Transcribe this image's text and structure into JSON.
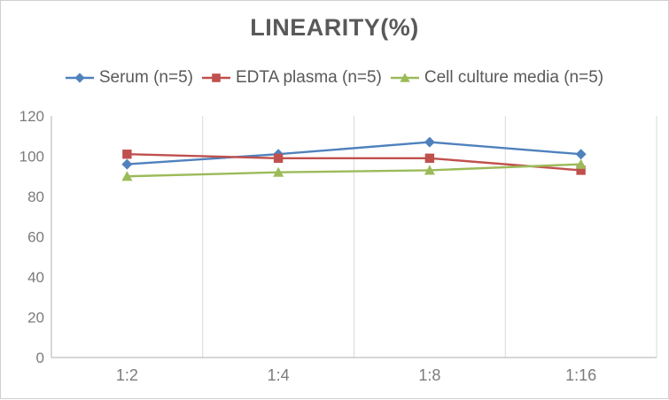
{
  "page": {
    "title": "LINEARITY(%)"
  },
  "legend": {
    "items": [
      {
        "label": "Serum (n=5)",
        "color": "#4F81BD",
        "marker": "diamond"
      },
      {
        "label": "EDTA plasma (n=5)",
        "color": "#C0504D",
        "marker": "square"
      },
      {
        "label": "Cell culture media (n=5)",
        "color": "#9BBB59",
        "marker": "triangle"
      }
    ]
  },
  "chart_data": {
    "type": "line",
    "title": "LINEARITY(%)",
    "categories": [
      "1:2",
      "1:4",
      "1:8",
      "1:16"
    ],
    "series": [
      {
        "name": "Serum (n=5)",
        "color": "#4F81BD",
        "marker": "diamond",
        "values": [
          96,
          101,
          107,
          101
        ]
      },
      {
        "name": "EDTA plasma (n=5)",
        "color": "#C0504D",
        "marker": "square",
        "values": [
          101,
          99,
          99,
          93
        ]
      },
      {
        "name": "Cell culture media (n=5)",
        "color": "#9BBB59",
        "marker": "triangle",
        "values": [
          90,
          92,
          93,
          96
        ]
      }
    ],
    "ylim": [
      0,
      120
    ],
    "yticks": [
      0,
      20,
      40,
      60,
      80,
      100,
      120
    ],
    "xlabel": "",
    "ylabel": "",
    "grid": "vertical-category-boundaries-only",
    "legend_position": "top"
  },
  "colors": {
    "background": "#FFFFFF",
    "border": "#CFCFCF",
    "axis_line": "#BFBFBF",
    "gridline": "#D9D9D9",
    "tick_text": "#7B7B7B",
    "title_text": "#595959",
    "legend_text": "#595959"
  }
}
